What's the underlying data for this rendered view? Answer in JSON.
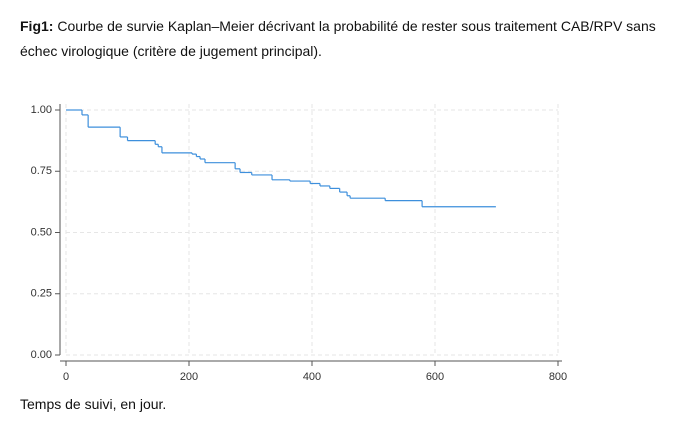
{
  "chart_data": {
    "type": "line",
    "step": "post",
    "figure_label": "Fig1:",
    "title": "Courbe de survie Kaplan–Meier décrivant la probabilité de rester sous traitement CAB/RPV sans échec virologique (critère de jugement principal).",
    "x_label": "Temps de suivi, en jour.",
    "x": [
      0,
      26,
      36,
      88,
      100,
      145,
      150,
      156,
      205,
      212,
      218,
      226,
      275,
      283,
      302,
      335,
      364,
      397,
      413,
      429,
      445,
      457,
      462,
      519,
      579,
      699
    ],
    "values": [
      1,
      0.98,
      0.93,
      0.89,
      0.875,
      0.86,
      0.85,
      0.825,
      0.82,
      0.81,
      0.8,
      0.785,
      0.76,
      0.745,
      0.735,
      0.715,
      0.71,
      0.7,
      0.69,
      0.68,
      0.665,
      0.65,
      0.64,
      0.63,
      0.605,
      0.605
    ],
    "color": "#3d8fdc",
    "xlim": [
      0,
      800
    ],
    "ylim": [
      0,
      1
    ],
    "xticks": [
      0,
      200,
      400,
      600,
      800
    ],
    "yticks": [
      {
        "value": 0,
        "label": "0.00"
      },
      0.25,
      {
        "value": 0.5,
        "label": "0.50"
      },
      0.75,
      {
        "value": 1,
        "label": "1.00"
      }
    ],
    "grid": true
  }
}
